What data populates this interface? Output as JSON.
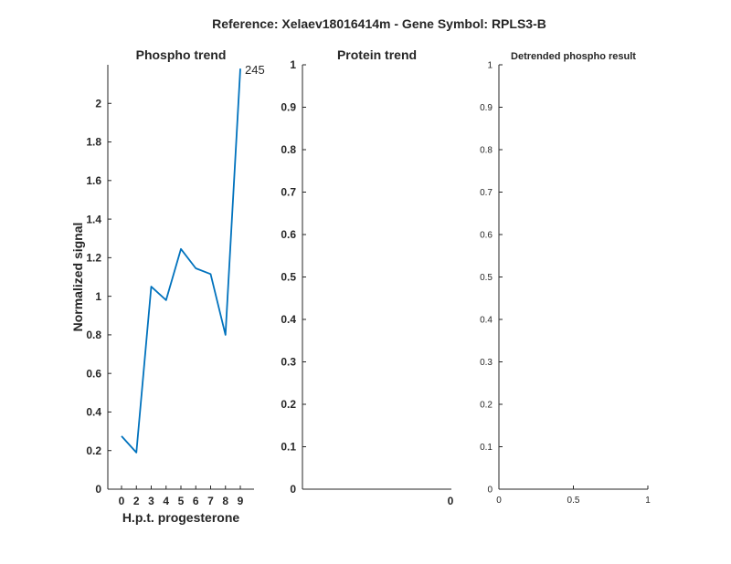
{
  "figure": {
    "suptitle": "Reference:  Xelaev18016414m - Gene Symbol:  RPLS3-B"
  },
  "chart_data": [
    {
      "type": "line",
      "title": "Phospho trend",
      "xlabel": "H.p.t. progesterone",
      "ylabel": "Normalized signal",
      "categories": [
        "0",
        "2",
        "3",
        "4",
        "5",
        "6",
        "7",
        "8",
        "9"
      ],
      "series": [
        {
          "values": [
            0.275,
            0.19,
            1.05,
            0.98,
            1.245,
            1.145,
            1.115,
            0.8,
            2.18
          ],
          "color": "#0072bd"
        }
      ],
      "annotations": [
        {
          "text": "245",
          "category": "9",
          "y": 2.18
        }
      ],
      "ylim": [
        0,
        2.2
      ],
      "yticks": [
        0,
        0.2,
        0.4,
        0.6,
        0.8,
        1,
        1.2,
        1.4,
        1.6,
        1.8,
        2
      ],
      "grid": false
    },
    {
      "type": "line",
      "title": "Protein trend",
      "xlabel": "",
      "ylabel": "",
      "xticks": [
        "0"
      ],
      "series": [],
      "ylim": [
        0,
        1
      ],
      "yticks": [
        0,
        0.1,
        0.2,
        0.3,
        0.4,
        0.5,
        0.6,
        0.7,
        0.8,
        0.9,
        1
      ],
      "grid": false
    },
    {
      "type": "line",
      "title": "Detrended phospho result",
      "xlabel": "",
      "ylabel": "",
      "xlim": [
        0,
        1
      ],
      "xticks": [
        0,
        0.5,
        1
      ],
      "series": [],
      "ylim": [
        0,
        1
      ],
      "yticks": [
        0,
        0.1,
        0.2,
        0.3,
        0.4,
        0.5,
        0.6,
        0.7,
        0.8,
        0.9,
        1
      ],
      "grid": false
    }
  ]
}
